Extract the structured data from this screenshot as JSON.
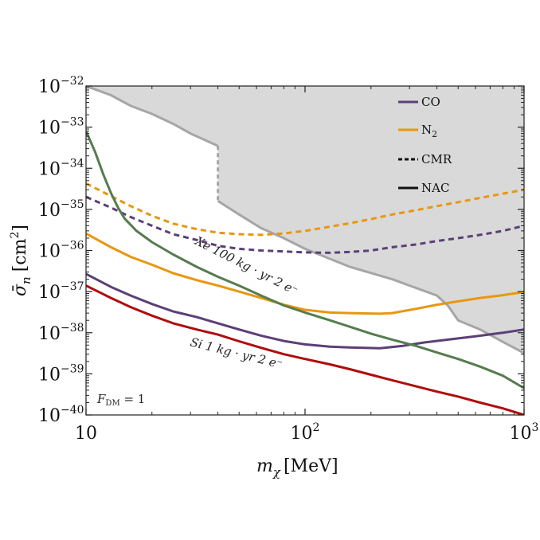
{
  "chart_data": {
    "type": "line",
    "xscale": "log",
    "yscale": "log",
    "xlim": [
      10,
      1000
    ],
    "ylim": [
      1e-40,
      1e-32
    ],
    "xlabel_symbol": "m",
    "xlabel_sub": "χ",
    "xlabel_unit": "[MeV]",
    "ylabel_symbol": "σ̄",
    "ylabel_sub": "n",
    "ylabel_unit": "[cm",
    "ylabel_unit_exp": "2",
    "ylabel_unit_close": "]",
    "colors": {
      "CO": "#5c3f78",
      "N2": "#e8970f",
      "Xe": "#567c4f",
      "Si": "#b00c0c",
      "excluded_fill": "#d9d9d9",
      "excluded_line": "#a6a6a6"
    },
    "x_ticks": [
      {
        "value": 10,
        "base": "10",
        "exp": ""
      },
      {
        "value": 100,
        "base": "10",
        "exp": "2"
      },
      {
        "value": 1000,
        "base": "10",
        "exp": "3"
      }
    ],
    "y_ticks": [
      {
        "value": 1e-32,
        "base": "10",
        "exp": "−32"
      },
      {
        "value": 1e-33,
        "base": "10",
        "exp": "−33"
      },
      {
        "value": 1e-34,
        "base": "10",
        "exp": "−34"
      },
      {
        "value": 1e-35,
        "base": "10",
        "exp": "−35"
      },
      {
        "value": 1e-36,
        "base": "10",
        "exp": "−36"
      },
      {
        "value": 1e-37,
        "base": "10",
        "exp": "−37"
      },
      {
        "value": 1e-38,
        "base": "10",
        "exp": "−38"
      },
      {
        "value": 1e-39,
        "base": "10",
        "exp": "−39"
      },
      {
        "value": 1e-40,
        "base": "10",
        "exp": "−40"
      }
    ],
    "legend": [
      {
        "label": "CO",
        "sub": "",
        "style": "solid",
        "color": "#5c3f78"
      },
      {
        "label": "N",
        "sub": "2",
        "style": "solid",
        "color": "#e8970f"
      },
      {
        "label": "CMR",
        "sub": "",
        "style": "dashed",
        "color": "#111111"
      },
      {
        "label": "NAC",
        "sub": "",
        "style": "solid",
        "color": "#111111"
      }
    ],
    "annotations": {
      "xe": "Xe 100 kg · yr 2 e⁻",
      "si": "Si 1 kg · yr 2 e⁻",
      "fdm": "F",
      "fdm_sub": "DM",
      "fdm_value": " = 1"
    },
    "excluded_region": {
      "name": "existing-limits",
      "boundary": [
        [
          10,
          1e-32
        ],
        [
          13,
          6e-33
        ],
        [
          16,
          3.3e-33
        ],
        [
          20,
          2.1e-33
        ],
        [
          25,
          1.2e-33
        ],
        [
          30,
          7e-34
        ],
        [
          40,
          3.5e-34
        ],
        [
          40,
          1.6e-35
        ],
        [
          50,
          7.5e-36
        ],
        [
          63,
          3.5e-36
        ],
        [
          80,
          2e-36
        ],
        [
          100,
          1.1e-36
        ],
        [
          160,
          4e-37
        ],
        [
          250,
          2e-37
        ],
        [
          400,
          8e-38
        ],
        [
          450,
          4.5e-38
        ],
        [
          500,
          2e-38
        ],
        [
          630,
          1.2e-38
        ],
        [
          800,
          6e-39
        ],
        [
          1000,
          3.2e-39
        ]
      ],
      "gap_segment": [
        [
          40,
          3.5e-34
        ],
        [
          40,
          1.6e-35
        ]
      ]
    },
    "series": [
      {
        "name": "CO CMR",
        "color_key": "CO",
        "style": "dashed",
        "points": [
          [
            10,
            2e-35
          ],
          [
            13,
            1.1e-35
          ],
          [
            16,
            6.5e-36
          ],
          [
            20,
            4e-36
          ],
          [
            25,
            2.5e-36
          ],
          [
            32,
            1.8e-36
          ],
          [
            40,
            1.3e-36
          ],
          [
            50,
            1.1e-36
          ],
          [
            63,
            1e-36
          ],
          [
            80,
            9.5e-37
          ],
          [
            100,
            9e-37
          ],
          [
            130,
            8.8e-37
          ],
          [
            160,
            9.2e-37
          ],
          [
            200,
            1e-36
          ],
          [
            250,
            1.2e-36
          ],
          [
            320,
            1.4e-36
          ],
          [
            400,
            1.7e-36
          ],
          [
            500,
            2e-36
          ],
          [
            630,
            2.4e-36
          ],
          [
            800,
            3e-36
          ],
          [
            1000,
            4e-36
          ]
        ]
      },
      {
        "name": "N2 CMR",
        "color_key": "N2",
        "style": "dashed",
        "points": [
          [
            10,
            4.3e-35
          ],
          [
            13,
            2.1e-35
          ],
          [
            16,
            1.2e-35
          ],
          [
            20,
            7e-36
          ],
          [
            25,
            4.5e-36
          ],
          [
            32,
            3.3e-36
          ],
          [
            40,
            2.7e-36
          ],
          [
            50,
            2.5e-36
          ],
          [
            63,
            2.4e-36
          ],
          [
            80,
            2.6e-36
          ],
          [
            100,
            3e-36
          ],
          [
            130,
            3.8e-36
          ],
          [
            160,
            4.6e-36
          ],
          [
            200,
            5.8e-36
          ],
          [
            250,
            7.5e-36
          ],
          [
            320,
            9.5e-36
          ],
          [
            400,
            1.2e-35
          ],
          [
            500,
            1.5e-35
          ],
          [
            630,
            1.9e-35
          ],
          [
            800,
            2.4e-35
          ],
          [
            1000,
            3e-35
          ]
        ]
      },
      {
        "name": "CO NAC",
        "color_key": "CO",
        "style": "solid",
        "points": [
          [
            10,
            2.7e-37
          ],
          [
            13,
            1.3e-37
          ],
          [
            16,
            8e-38
          ],
          [
            20,
            5e-38
          ],
          [
            25,
            3.3e-38
          ],
          [
            32,
            2.4e-38
          ],
          [
            40,
            1.7e-38
          ],
          [
            50,
            1.2e-38
          ],
          [
            63,
            8.5e-39
          ],
          [
            80,
            6.3e-39
          ],
          [
            100,
            5.2e-39
          ],
          [
            130,
            4.6e-39
          ],
          [
            160,
            4.4e-39
          ],
          [
            220,
            4.2e-39
          ],
          [
            280,
            4.8e-39
          ],
          [
            350,
            5.8e-39
          ],
          [
            450,
            6.8e-39
          ],
          [
            600,
            8.2e-39
          ],
          [
            800,
            1e-38
          ],
          [
            1000,
            1.2e-38
          ]
        ]
      },
      {
        "name": "N2 NAC",
        "color_key": "N2",
        "style": "solid",
        "points": [
          [
            10,
            2.6e-36
          ],
          [
            13,
            1.2e-36
          ],
          [
            16,
            7e-37
          ],
          [
            20,
            4.5e-37
          ],
          [
            25,
            2.8e-37
          ],
          [
            32,
            1.9e-37
          ],
          [
            40,
            1.4e-37
          ],
          [
            50,
            1e-37
          ],
          [
            63,
            7e-38
          ],
          [
            80,
            4.8e-38
          ],
          [
            100,
            3.6e-38
          ],
          [
            130,
            3.1e-38
          ],
          [
            160,
            3e-38
          ],
          [
            220,
            2.9e-38
          ],
          [
            250,
            3e-38
          ],
          [
            320,
            3.8e-38
          ],
          [
            400,
            4.8e-38
          ],
          [
            500,
            5.8e-38
          ],
          [
            630,
            7e-38
          ],
          [
            800,
            8.2e-38
          ],
          [
            1000,
            9.8e-38
          ]
        ]
      },
      {
        "name": "Xe 100 kg yr",
        "color_key": "Xe",
        "style": "solid",
        "points": [
          [
            10,
            8e-34
          ],
          [
            11,
            2.5e-34
          ],
          [
            12,
            7e-35
          ],
          [
            13,
            2.5e-35
          ],
          [
            14,
            1.1e-35
          ],
          [
            15,
            6e-36
          ],
          [
            17,
            3e-36
          ],
          [
            20,
            1.6e-36
          ],
          [
            25,
            8e-37
          ],
          [
            32,
            4e-37
          ],
          [
            40,
            2.3e-37
          ],
          [
            50,
            1.4e-37
          ],
          [
            63,
            8e-38
          ],
          [
            80,
            4.6e-38
          ],
          [
            100,
            3.1e-38
          ],
          [
            130,
            2e-38
          ],
          [
            160,
            1.4e-38
          ],
          [
            200,
            9.5e-39
          ],
          [
            250,
            6.8e-39
          ],
          [
            320,
            4.8e-39
          ],
          [
            400,
            3.3e-39
          ],
          [
            500,
            2.3e-39
          ],
          [
            630,
            1.5e-39
          ],
          [
            800,
            9e-40
          ],
          [
            1000,
            4.5e-40
          ]
        ]
      },
      {
        "name": "Si 1 kg yr",
        "color_key": "Si",
        "style": "solid",
        "points": [
          [
            10,
            1.4e-37
          ],
          [
            13,
            7e-38
          ],
          [
            16,
            4.2e-38
          ],
          [
            20,
            2.6e-38
          ],
          [
            25,
            1.7e-38
          ],
          [
            32,
            1.2e-38
          ],
          [
            40,
            9e-39
          ],
          [
            50,
            6.2e-39
          ],
          [
            63,
            4.3e-39
          ],
          [
            80,
            3e-39
          ],
          [
            100,
            2.3e-39
          ],
          [
            130,
            1.7e-39
          ],
          [
            160,
            1.3e-39
          ],
          [
            200,
            9.5e-40
          ],
          [
            250,
            7e-40
          ],
          [
            320,
            5e-40
          ],
          [
            400,
            3.7e-40
          ],
          [
            500,
            2.8e-40
          ],
          [
            630,
            2e-40
          ],
          [
            800,
            1.45e-40
          ],
          [
            1000,
            1e-40
          ]
        ]
      }
    ]
  }
}
